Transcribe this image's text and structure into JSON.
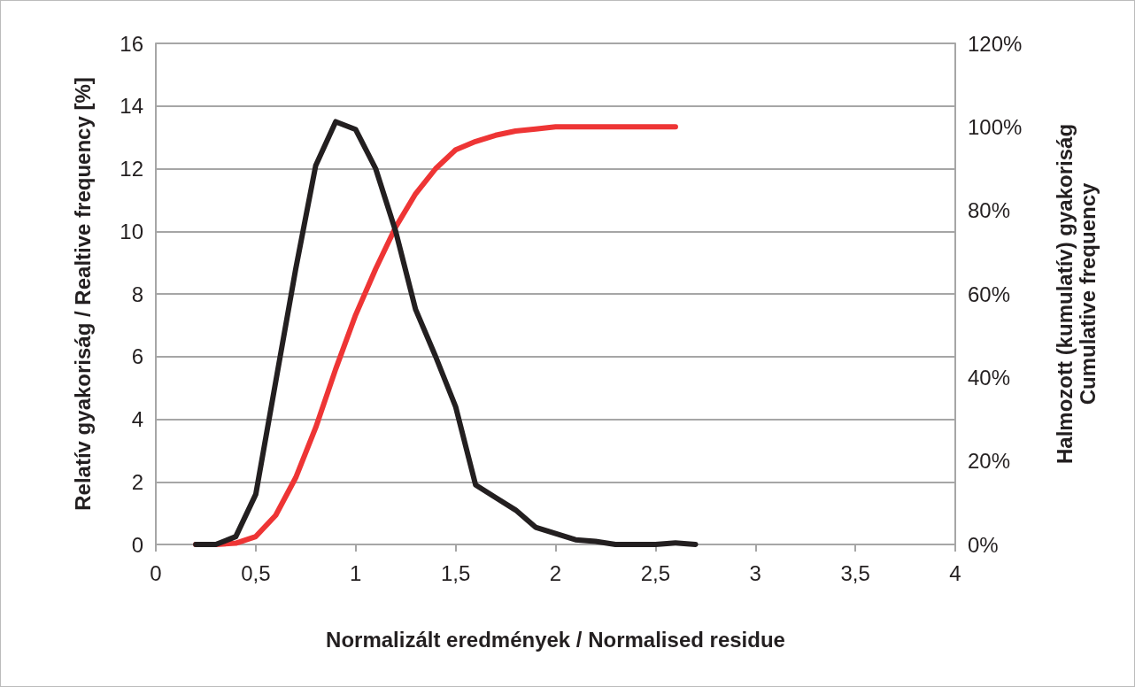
{
  "chart_data": {
    "type": "line",
    "xlabel": "Normalizált eredmények / Normalised residue",
    "ylabel": "Relatív gyakoriság / Realtive frequency [%]",
    "y2label": "Halmozott (kumulatív) gyakoriság\nCumulative frequency",
    "x": [
      0.2,
      0.3,
      0.4,
      0.5,
      0.6,
      0.7,
      0.8,
      0.9,
      1.0,
      1.1,
      1.2,
      1.3,
      1.4,
      1.5,
      1.6,
      1.7,
      1.8,
      1.9,
      2.0,
      2.1,
      2.2,
      2.3,
      2.4,
      2.5,
      2.6,
      2.7
    ],
    "series": [
      {
        "color": "#231f20",
        "values": [
          0,
          0,
          0.25,
          1.6,
          5.2,
          8.8,
          12.1,
          13.5,
          13.25,
          12.0,
          10.0,
          7.5,
          6.0,
          4.4,
          1.9,
          1.5,
          1.1,
          0.55,
          0.35,
          0.15,
          0.1,
          0,
          0,
          0,
          0.05,
          0
        ]
      },
      {
        "color": "#ee3535",
        "axis": "y2",
        "values": [
          0,
          0,
          0.3,
          1.9,
          7,
          16,
          28,
          42,
          55,
          66,
          76,
          84,
          90,
          94.5,
          96.5,
          98,
          99,
          99.5,
          100,
          100,
          100,
          100,
          100,
          100,
          100,
          null
        ]
      }
    ],
    "xlim": [
      0,
      4
    ],
    "xticks": [
      0,
      {
        "value": 0.5,
        "label": "0,5"
      },
      1,
      {
        "value": 1.5,
        "label": "1,5"
      },
      2,
      {
        "value": 2.5,
        "label": "2,5"
      },
      3,
      {
        "value": 3.5,
        "label": "3,5"
      },
      4
    ],
    "ylim": [
      0,
      16
    ],
    "yticks": [
      0,
      2,
      4,
      6,
      8,
      10,
      12,
      14,
      16
    ],
    "y2lim": [
      0,
      120
    ],
    "y2ticks": [
      {
        "value": 0,
        "label": "0%"
      },
      {
        "value": 20,
        "label": "20%"
      },
      {
        "value": 40,
        "label": "40%"
      },
      {
        "value": 60,
        "label": "60%"
      },
      {
        "value": 80,
        "label": "80%"
      },
      {
        "value": 100,
        "label": "100%"
      },
      {
        "value": 120,
        "label": "120%"
      }
    ],
    "grid": "y",
    "marker": "none",
    "line_style": "solid"
  }
}
